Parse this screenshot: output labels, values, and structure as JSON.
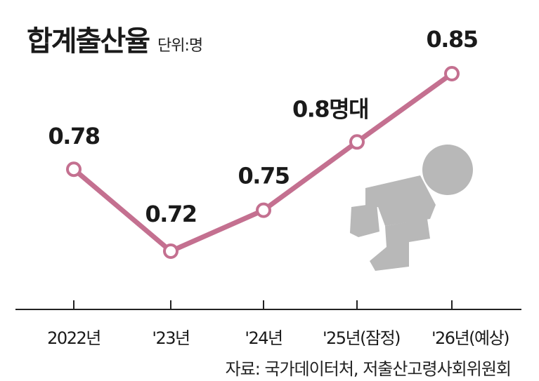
{
  "header": {
    "title": "합계출산율",
    "unit": "단위:명"
  },
  "colors": {
    "line": "#c47090",
    "marker_fill": "#ffffff",
    "axis": "#222222",
    "figure": "#b8b8b8"
  },
  "chart_data": {
    "type": "line",
    "categories": [
      "2022년",
      "'23년",
      "'24년",
      "'25년(잠정)",
      "'26년(예상)"
    ],
    "values": [
      0.78,
      0.72,
      0.75,
      0.8,
      0.85
    ],
    "data_labels": [
      "0.78",
      "0.72",
      "0.75",
      "0.8명대",
      "0.85"
    ],
    "title": "합계출산율",
    "ylabel": "단위:명",
    "grid": false,
    "legend": "none"
  },
  "source": "자료: 국가데이터처, 저출산고령사회위원회"
}
